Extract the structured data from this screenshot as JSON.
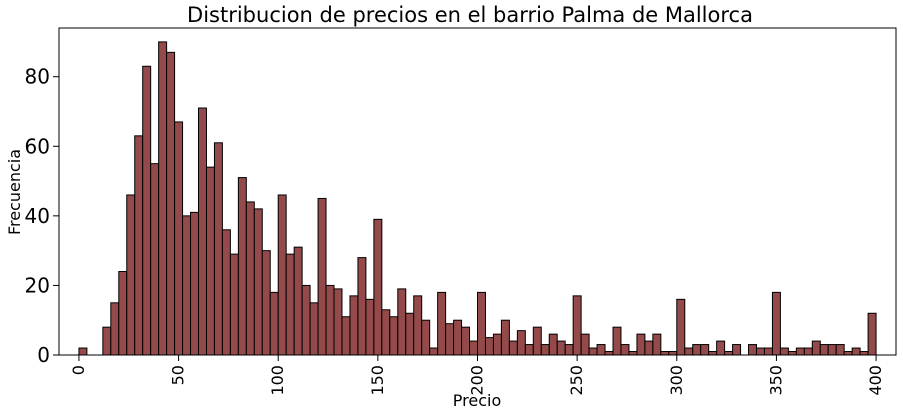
{
  "chart_data": {
    "type": "bar",
    "title": "Distribucion de precios en el barrio Palma de Mallorca",
    "xlabel": "Precio",
    "ylabel": "Frecuencia",
    "xlim": [
      -10,
      410
    ],
    "ylim": [
      0,
      94
    ],
    "xticks": [
      0,
      50,
      100,
      150,
      200,
      250,
      300,
      350,
      400
    ],
    "xtick_labels": [
      "0",
      "50",
      "100",
      "150",
      "200",
      "250",
      "300",
      "350",
      "400"
    ],
    "yticks": [
      0,
      20,
      40,
      60,
      80
    ],
    "ytick_labels": [
      "0",
      "20",
      "40",
      "60",
      "80"
    ],
    "grid": false,
    "bar_color": "#944a4a",
    "edge_color": "#000000",
    "bin_width": 4,
    "series": [
      {
        "bin_starts": [
          0,
          12,
          16,
          20,
          24,
          28,
          32,
          36,
          40,
          44,
          48,
          52,
          56,
          60,
          64,
          68,
          72,
          76,
          80,
          84,
          88,
          92,
          96,
          100,
          104,
          108,
          112,
          116,
          120,
          124,
          128,
          132,
          136,
          140,
          144,
          148,
          152,
          156,
          160,
          164,
          168,
          172,
          176,
          180,
          184,
          188,
          192,
          196,
          200,
          204,
          208,
          212,
          216,
          220,
          224,
          228,
          232,
          236,
          240,
          244,
          248,
          252,
          256,
          260,
          264,
          268,
          272,
          276,
          280,
          284,
          288,
          292,
          296,
          300,
          304,
          308,
          312,
          316,
          320,
          324,
          328,
          336,
          340,
          344,
          348,
          352,
          356,
          360,
          364,
          368,
          372,
          376,
          380,
          384,
          388,
          392,
          396
        ],
        "values": [
          2,
          8,
          15,
          24,
          46,
          63,
          83,
          55,
          90,
          87,
          67,
          40,
          41,
          71,
          54,
          61,
          36,
          29,
          51,
          44,
          42,
          30,
          18,
          46,
          29,
          31,
          20,
          15,
          45,
          20,
          19,
          11,
          17,
          28,
          16,
          39,
          13,
          11,
          19,
          12,
          17,
          10,
          2,
          18,
          9,
          10,
          8,
          4,
          18,
          5,
          6,
          10,
          4,
          7,
          3,
          8,
          3,
          6,
          4,
          3,
          17,
          6,
          2,
          3,
          1,
          8,
          3,
          1,
          6,
          4,
          6,
          1,
          1,
          16,
          2,
          3,
          3,
          1,
          4,
          1,
          3,
          3,
          2,
          2,
          18,
          2,
          1,
          2,
          2,
          4,
          3,
          3,
          3,
          1,
          2,
          1,
          12
        ]
      }
    ]
  }
}
